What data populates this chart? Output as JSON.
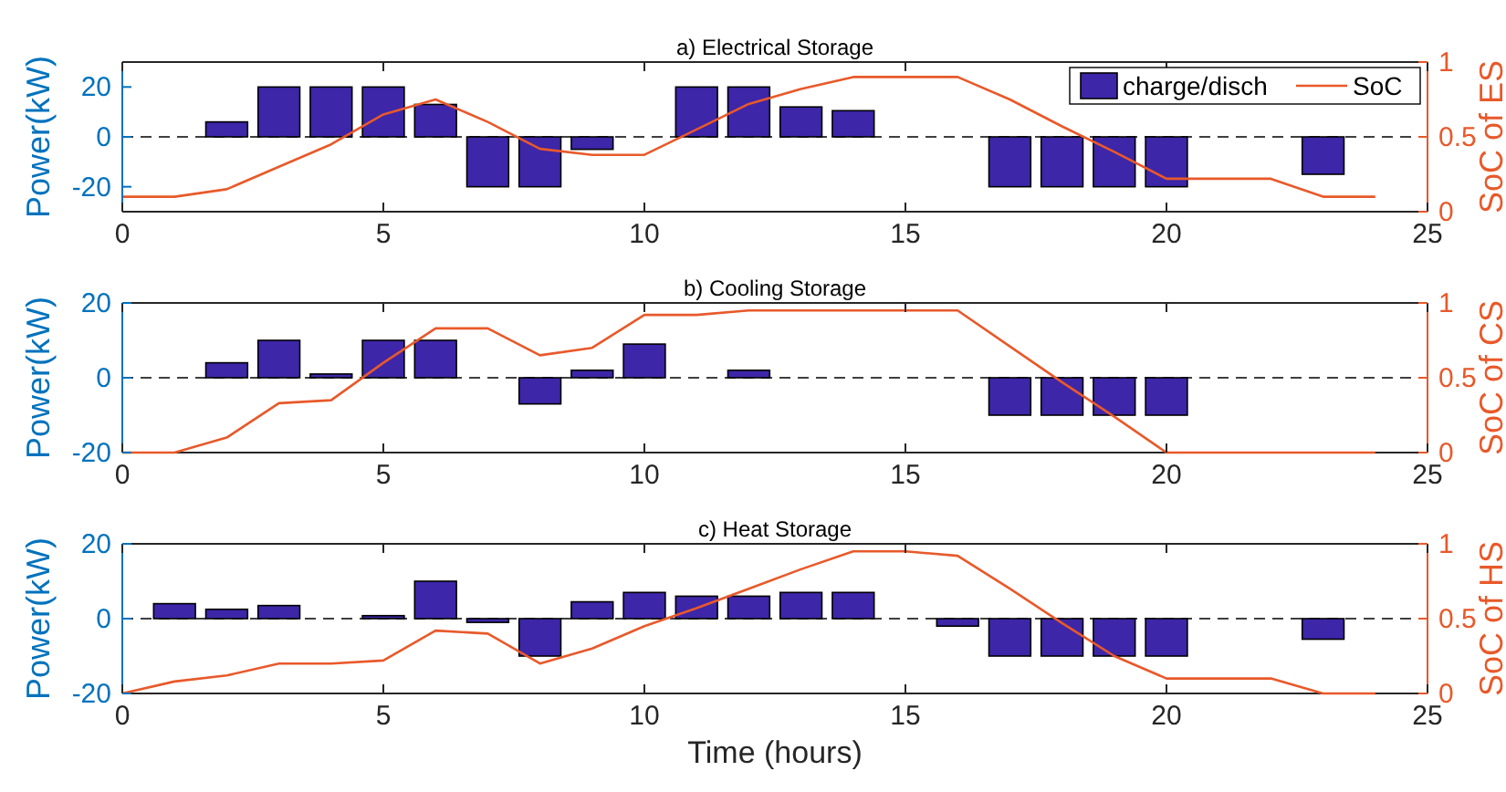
{
  "chart_data": [
    {
      "type": "bar",
      "title": "a) Electrical Storage",
      "ylabel": "Power(kW)",
      "y2label": "SoC of ES",
      "x": [
        1,
        2,
        3,
        4,
        5,
        6,
        7,
        8,
        9,
        10,
        11,
        12,
        13,
        14,
        15,
        16,
        17,
        18,
        19,
        20,
        21,
        22,
        23,
        24
      ],
      "xlim": [
        0,
        25
      ],
      "xticks": [
        0,
        5,
        10,
        15,
        20,
        25
      ],
      "ylim": [
        -30,
        30
      ],
      "yticks": [
        -20,
        0,
        20
      ],
      "y2lim": [
        0,
        1
      ],
      "y2ticks": [
        0,
        0.5,
        1
      ],
      "legend": "top right",
      "ref_lines": [
        {
          "axis": "y",
          "value": 0,
          "color": "#000000",
          "line_style": "dashed"
        }
      ],
      "series": [
        {
          "name": "charge/disch",
          "color": "#3d26a8",
          "values": [
            0,
            6,
            20,
            20,
            20,
            13,
            -20,
            -20,
            -5,
            0,
            20,
            20,
            12,
            10.5,
            0,
            0,
            -20,
            -20,
            -20,
            -20,
            0,
            0,
            -15,
            0
          ]
        },
        {
          "name": "SoC",
          "type": "line",
          "axis": "y2",
          "color": "#e8592a",
          "x": [
            0,
            1,
            2,
            3,
            4,
            5,
            6,
            7,
            8,
            9,
            10,
            11,
            12,
            13,
            14,
            15,
            16,
            17,
            18,
            19,
            20,
            21,
            22,
            23,
            24
          ],
          "values": [
            0.1,
            0.1,
            0.15,
            0.3,
            0.45,
            0.65,
            0.75,
            0.6,
            0.42,
            0.38,
            0.38,
            0.55,
            0.72,
            0.82,
            0.9,
            0.9,
            0.9,
            0.75,
            0.57,
            0.4,
            0.22,
            0.22,
            0.22,
            0.1,
            0.1
          ]
        }
      ]
    },
    {
      "type": "bar",
      "title": "b) Cooling Storage",
      "ylabel": "Power(kW)",
      "y2label": "SoC of CS",
      "x": [
        1,
        2,
        3,
        4,
        5,
        6,
        7,
        8,
        9,
        10,
        11,
        12,
        13,
        14,
        15,
        16,
        17,
        18,
        19,
        20,
        21,
        22,
        23,
        24
      ],
      "xlim": [
        0,
        25
      ],
      "xticks": [
        0,
        5,
        10,
        15,
        20,
        25
      ],
      "ylim": [
        -20,
        20
      ],
      "yticks": [
        -20,
        0,
        20
      ],
      "y2lim": [
        0,
        1
      ],
      "y2ticks": [
        0,
        0.5,
        1
      ],
      "ref_lines": [
        {
          "axis": "y",
          "value": 0,
          "color": "#000000",
          "line_style": "dashed"
        }
      ],
      "series": [
        {
          "color": "#3d26a8",
          "values": [
            0,
            4,
            10,
            1,
            10,
            10,
            0,
            -7,
            2,
            9,
            0,
            2,
            0,
            0,
            0,
            0,
            -10,
            -10,
            -10,
            -10,
            0,
            0,
            0,
            0
          ]
        },
        {
          "type": "line",
          "axis": "y2",
          "color": "#e8592a",
          "x": [
            0,
            1,
            2,
            3,
            4,
            5,
            6,
            7,
            8,
            9,
            10,
            11,
            12,
            13,
            14,
            15,
            16,
            17,
            18,
            19,
            20,
            21,
            22,
            23,
            24
          ],
          "values": [
            0,
            0,
            0.1,
            0.33,
            0.35,
            0.6,
            0.83,
            0.83,
            0.65,
            0.7,
            0.92,
            0.92,
            0.95,
            0.95,
            0.95,
            0.95,
            0.95,
            0.71,
            0.47,
            0.24,
            0,
            0,
            0,
            0,
            0
          ]
        }
      ]
    },
    {
      "type": "bar",
      "title": "c) Heat Storage",
      "xlabel": "Time (hours)",
      "ylabel": "Power(kW)",
      "y2label": "SoC of HS",
      "x": [
        1,
        2,
        3,
        4,
        5,
        6,
        7,
        8,
        9,
        10,
        11,
        12,
        13,
        14,
        15,
        16,
        17,
        18,
        19,
        20,
        21,
        22,
        23,
        24
      ],
      "xlim": [
        0,
        25
      ],
      "xticks": [
        0,
        5,
        10,
        15,
        20,
        25
      ],
      "ylim": [
        -20,
        20
      ],
      "yticks": [
        -20,
        0,
        20
      ],
      "y2lim": [
        0,
        1
      ],
      "y2ticks": [
        0,
        0.5,
        1
      ],
      "ref_lines": [
        {
          "axis": "y",
          "value": 0,
          "color": "#000000",
          "line_style": "dashed"
        }
      ],
      "series": [
        {
          "color": "#3d26a8",
          "values": [
            4,
            2.5,
            3.5,
            0,
            0.8,
            10,
            -1,
            -10,
            4.5,
            7,
            6,
            6,
            7,
            7,
            0,
            -2,
            -10,
            -10,
            -10,
            -10,
            0,
            0,
            -5.5,
            0
          ]
        },
        {
          "type": "line",
          "axis": "y2",
          "color": "#e8592a",
          "x": [
            0,
            1,
            2,
            3,
            4,
            5,
            6,
            7,
            8,
            9,
            10,
            11,
            12,
            13,
            14,
            15,
            16,
            17,
            18,
            19,
            20,
            21,
            22,
            23,
            24
          ],
          "values": [
            0,
            0.08,
            0.12,
            0.2,
            0.2,
            0.22,
            0.42,
            0.4,
            0.2,
            0.3,
            0.45,
            0.57,
            0.7,
            0.83,
            0.95,
            0.95,
            0.92,
            0.7,
            0.47,
            0.25,
            0.1,
            0.1,
            0.1,
            0,
            0
          ]
        }
      ]
    }
  ]
}
